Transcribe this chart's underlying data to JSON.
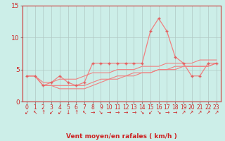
{
  "xlabel": "Vent moyen/en rafales ( km/h )",
  "bg_color": "#cceee8",
  "grid_color": "#b0c8c4",
  "line_color": "#f08080",
  "marker_color": "#e06060",
  "x": [
    0,
    1,
    2,
    3,
    4,
    5,
    6,
    7,
    8,
    9,
    10,
    11,
    12,
    13,
    14,
    15,
    16,
    17,
    18,
    19,
    20,
    21,
    22,
    23
  ],
  "y_main": [
    4.0,
    4.0,
    2.5,
    3.0,
    4.0,
    3.0,
    2.5,
    3.0,
    6.0,
    6.0,
    6.0,
    6.0,
    6.0,
    6.0,
    6.0,
    11.0,
    13.0,
    11.0,
    7.0,
    6.0,
    4.0,
    4.0,
    6.0,
    6.0
  ],
  "y_trend1": [
    4.0,
    4.0,
    3.0,
    3.0,
    3.5,
    3.5,
    3.5,
    4.0,
    4.5,
    4.5,
    4.5,
    5.0,
    5.0,
    5.0,
    5.5,
    5.5,
    5.5,
    6.0,
    6.0,
    6.0,
    6.0,
    6.5,
    6.5,
    6.5
  ],
  "y_trend2": [
    4.0,
    4.0,
    2.5,
    2.5,
    2.5,
    2.5,
    2.5,
    2.5,
    3.0,
    3.5,
    3.5,
    4.0,
    4.0,
    4.5,
    4.5,
    4.5,
    5.0,
    5.0,
    5.5,
    5.5,
    5.5,
    5.5,
    5.5,
    6.0
  ],
  "y_trend3": [
    4.0,
    4.0,
    2.5,
    2.5,
    2.0,
    2.0,
    2.0,
    2.0,
    2.5,
    3.0,
    3.5,
    3.5,
    4.0,
    4.0,
    4.5,
    4.5,
    5.0,
    5.0,
    5.0,
    5.5,
    5.5,
    5.5,
    5.5,
    6.0
  ],
  "ylim": [
    0,
    15
  ],
  "yticks": [
    0,
    5,
    10,
    15
  ],
  "xticks": [
    0,
    1,
    2,
    3,
    4,
    5,
    6,
    7,
    8,
    9,
    10,
    11,
    12,
    13,
    14,
    15,
    16,
    17,
    18,
    19,
    20,
    21,
    22,
    23
  ],
  "arrow_symbols": [
    "↙",
    "↖",
    "↑",
    "↙",
    "↙",
    "↓",
    "↑",
    "↖",
    "→",
    "↘",
    "→",
    "→",
    "→",
    "→",
    "↘",
    "↙",
    "↘",
    "→",
    "→",
    "↗",
    "↗",
    "↗",
    "↗",
    "↗"
  ],
  "tick_color": "#cc2222",
  "spine_color": "#cc3333",
  "xlabel_color": "#cc2222",
  "xlabel_fontsize": 6.5,
  "ytick_fontsize": 6.5,
  "xtick_fontsize": 5.5,
  "arrow_fontsize": 5.5
}
